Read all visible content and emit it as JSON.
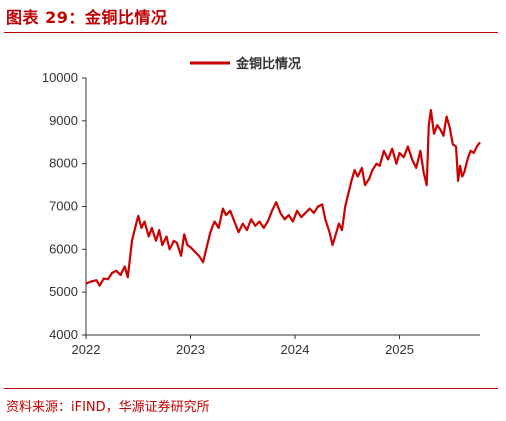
{
  "figure": {
    "title": "图表 29：金铜比情况",
    "source": "资料来源：iFIND，华源证券研究所"
  },
  "colors": {
    "accent": "#c00000",
    "series": "#cc0000"
  },
  "chart_data": {
    "type": "line",
    "title": "",
    "xlabel": "",
    "ylabel": "",
    "x_ticks": [
      "2022",
      "2023",
      "2024",
      "2025"
    ],
    "y_ticks": [
      4000,
      5000,
      6000,
      7000,
      8000,
      9000,
      10000
    ],
    "ylim": [
      4000,
      10000
    ],
    "xlim": [
      2022.0,
      2025.77
    ],
    "grid": false,
    "legend_position": "top-center",
    "series": [
      {
        "name": "金铜比情况",
        "points": [
          [
            2022.0,
            5200
          ],
          [
            2022.05,
            5250
          ],
          [
            2022.1,
            5280
          ],
          [
            2022.13,
            5150
          ],
          [
            2022.17,
            5320
          ],
          [
            2022.21,
            5300
          ],
          [
            2022.25,
            5450
          ],
          [
            2022.29,
            5500
          ],
          [
            2022.33,
            5400
          ],
          [
            2022.37,
            5600
          ],
          [
            2022.4,
            5350
          ],
          [
            2022.44,
            6200
          ],
          [
            2022.48,
            6600
          ],
          [
            2022.5,
            6780
          ],
          [
            2022.53,
            6500
          ],
          [
            2022.56,
            6650
          ],
          [
            2022.6,
            6300
          ],
          [
            2022.63,
            6500
          ],
          [
            2022.67,
            6200
          ],
          [
            2022.7,
            6450
          ],
          [
            2022.73,
            6100
          ],
          [
            2022.77,
            6300
          ],
          [
            2022.8,
            6000
          ],
          [
            2022.84,
            6200
          ],
          [
            2022.87,
            6150
          ],
          [
            2022.91,
            5850
          ],
          [
            2022.94,
            6350
          ],
          [
            2022.97,
            6100
          ],
          [
            2023.0,
            6050
          ],
          [
            2023.04,
            5950
          ],
          [
            2023.08,
            5850
          ],
          [
            2023.12,
            5700
          ],
          [
            2023.16,
            6100
          ],
          [
            2023.19,
            6400
          ],
          [
            2023.23,
            6650
          ],
          [
            2023.27,
            6500
          ],
          [
            2023.31,
            6950
          ],
          [
            2023.34,
            6800
          ],
          [
            2023.38,
            6900
          ],
          [
            2023.42,
            6650
          ],
          [
            2023.46,
            6400
          ],
          [
            2023.5,
            6600
          ],
          [
            2023.54,
            6450
          ],
          [
            2023.58,
            6700
          ],
          [
            2023.62,
            6550
          ],
          [
            2023.66,
            6650
          ],
          [
            2023.7,
            6500
          ],
          [
            2023.74,
            6650
          ],
          [
            2023.78,
            6900
          ],
          [
            2023.82,
            7100
          ],
          [
            2023.86,
            6850
          ],
          [
            2023.9,
            6700
          ],
          [
            2023.94,
            6800
          ],
          [
            2023.98,
            6650
          ],
          [
            2024.02,
            6900
          ],
          [
            2024.06,
            6750
          ],
          [
            2024.1,
            6850
          ],
          [
            2024.14,
            6950
          ],
          [
            2024.18,
            6850
          ],
          [
            2024.22,
            7000
          ],
          [
            2024.26,
            7050
          ],
          [
            2024.29,
            6700
          ],
          [
            2024.33,
            6400
          ],
          [
            2024.36,
            6100
          ],
          [
            2024.39,
            6350
          ],
          [
            2024.42,
            6600
          ],
          [
            2024.45,
            6450
          ],
          [
            2024.48,
            7000
          ],
          [
            2024.51,
            7300
          ],
          [
            2024.54,
            7600
          ],
          [
            2024.57,
            7850
          ],
          [
            2024.6,
            7700
          ],
          [
            2024.64,
            7900
          ],
          [
            2024.67,
            7500
          ],
          [
            2024.71,
            7650
          ],
          [
            2024.74,
            7850
          ],
          [
            2024.78,
            8000
          ],
          [
            2024.81,
            7950
          ],
          [
            2024.85,
            8300
          ],
          [
            2024.89,
            8100
          ],
          [
            2024.93,
            8350
          ],
          [
            2024.97,
            8000
          ],
          [
            2025.0,
            8250
          ],
          [
            2025.04,
            8150
          ],
          [
            2025.08,
            8400
          ],
          [
            2025.12,
            8100
          ],
          [
            2025.16,
            7900
          ],
          [
            2025.2,
            8300
          ],
          [
            2025.23,
            7800
          ],
          [
            2025.26,
            7500
          ],
          [
            2025.28,
            8900
          ],
          [
            2025.3,
            9250
          ],
          [
            2025.33,
            8700
          ],
          [
            2025.36,
            8900
          ],
          [
            2025.39,
            8800
          ],
          [
            2025.42,
            8650
          ],
          [
            2025.45,
            9100
          ],
          [
            2025.48,
            8850
          ],
          [
            2025.51,
            8450
          ],
          [
            2025.54,
            8400
          ],
          [
            2025.56,
            7600
          ],
          [
            2025.58,
            7950
          ],
          [
            2025.6,
            7700
          ],
          [
            2025.62,
            7800
          ],
          [
            2025.65,
            8100
          ],
          [
            2025.68,
            8300
          ],
          [
            2025.71,
            8250
          ],
          [
            2025.74,
            8400
          ],
          [
            2025.77,
            8500
          ]
        ]
      }
    ]
  }
}
